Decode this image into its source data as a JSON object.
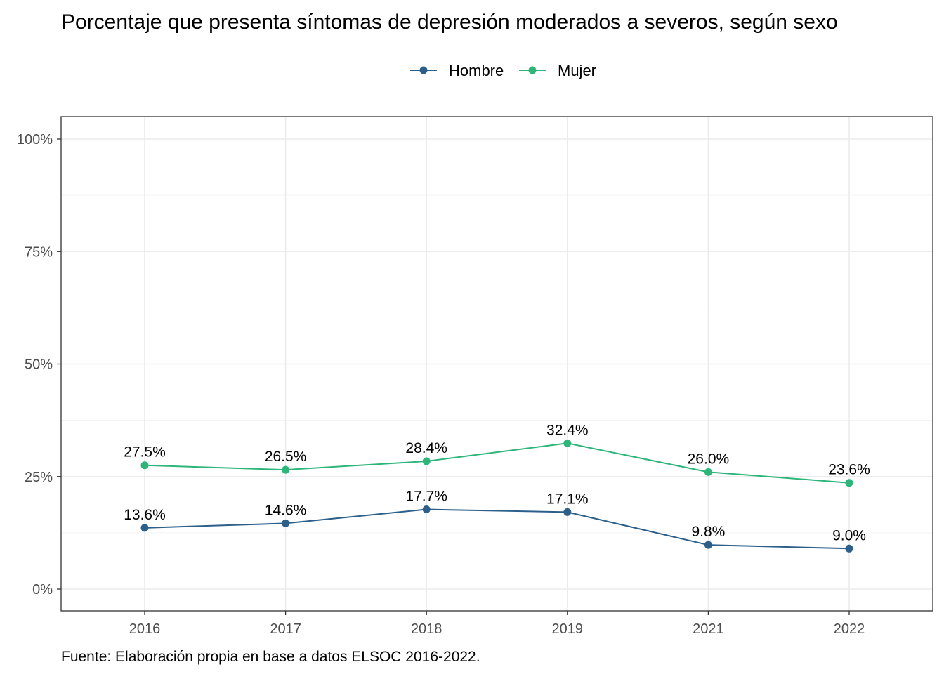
{
  "chart_data": {
    "type": "line",
    "title": "Porcentaje que presenta síntomas de depresión moderados a severos, según sexo",
    "caption": "Fuente: Elaboración propia en base a datos ELSOC 2016-2022.",
    "xlabel": "",
    "ylabel": "",
    "categories": [
      "2016",
      "2017",
      "2018",
      "2019",
      "2021",
      "2022"
    ],
    "ylim": [
      0,
      100
    ],
    "y_ticks": [
      0,
      25,
      50,
      75,
      100
    ],
    "y_tick_labels": [
      "0%",
      "25%",
      "50%",
      "75%",
      "100%"
    ],
    "grid": true,
    "legend_position": "top",
    "series": [
      {
        "name": "Hombre",
        "color": "#2c5f8a",
        "values": [
          13.6,
          14.6,
          17.7,
          17.1,
          9.8,
          9.0
        ],
        "labels": [
          "13.6%",
          "14.6%",
          "17.7%",
          "17.1%",
          "9.8%",
          "9.0%"
        ]
      },
      {
        "name": "Mujer",
        "color": "#2db57a",
        "values": [
          27.5,
          26.5,
          28.4,
          32.4,
          26.0,
          23.6
        ],
        "labels": [
          "27.5%",
          "26.5%",
          "28.4%",
          "32.4%",
          "26.0%",
          "23.6%"
        ]
      }
    ]
  }
}
